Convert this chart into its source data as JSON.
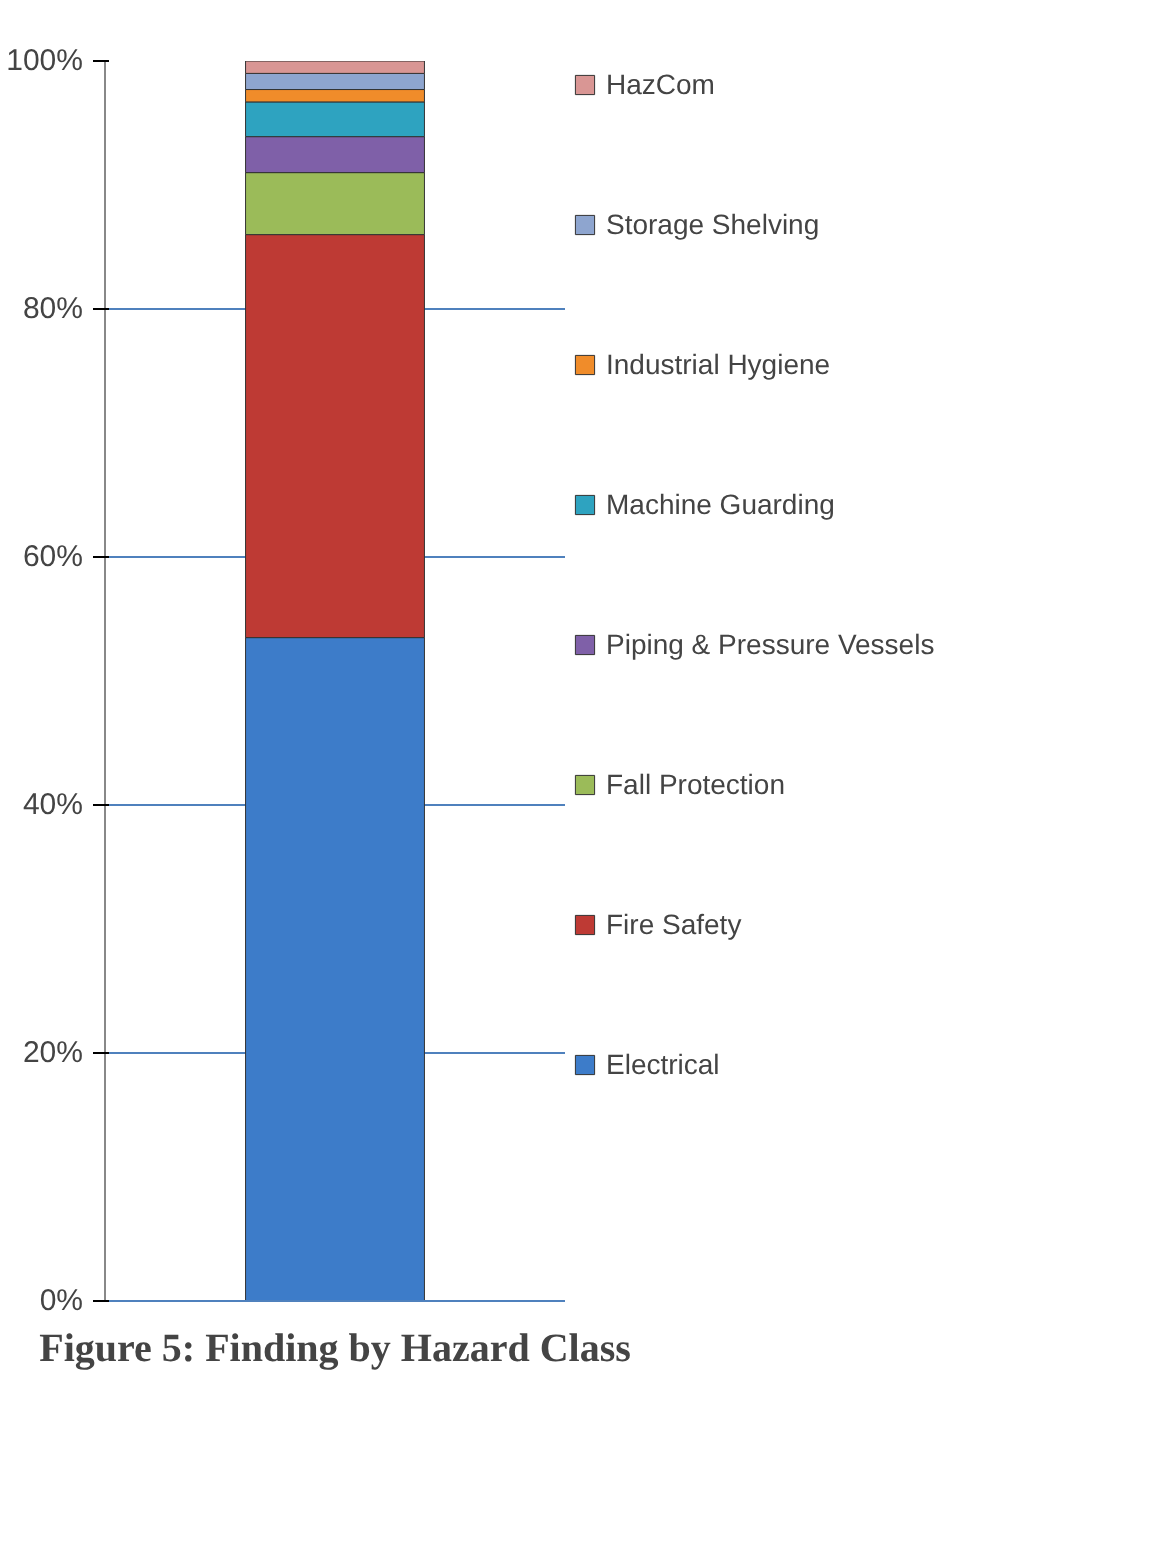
{
  "chart_data": {
    "type": "bar",
    "title": "Figure 5: Finding by Hazard Class",
    "categories": [
      null
    ],
    "stacked": true,
    "series": [
      {
        "name": "Electrical",
        "color": "#3d7cc9",
        "values": [
          53.5
        ]
      },
      {
        "name": "Fire Safety",
        "color": "#be3a34",
        "values": [
          32.5
        ]
      },
      {
        "name": "Fall Protection",
        "color": "#9bbb59",
        "values": [
          5
        ]
      },
      {
        "name": "Piping & Pressure Vessels",
        "color": "#7f60a8",
        "values": [
          2.9
        ]
      },
      {
        "name": "Machine Guarding",
        "color": "#2ea3c0",
        "values": [
          2.8
        ]
      },
      {
        "name": "Industrial Hygiene",
        "color": "#f08c2a",
        "values": [
          1
        ]
      },
      {
        "name": "Storage Shelving",
        "color": "#8ea5cf",
        "values": [
          1.3
        ]
      },
      {
        "name": "HazCom",
        "color": "#d99694",
        "values": [
          1
        ]
      }
    ],
    "ylim": [
      0,
      100
    ],
    "yticks": [
      {
        "value": 0,
        "label": "0%"
      },
      {
        "value": 20,
        "label": "20%"
      },
      {
        "value": 40,
        "label": "40%"
      },
      {
        "value": 60,
        "label": "60%"
      },
      {
        "value": 80,
        "label": "80%"
      },
      {
        "value": 100,
        "label": "100%"
      }
    ],
    "grid": "y",
    "legend": "right"
  }
}
